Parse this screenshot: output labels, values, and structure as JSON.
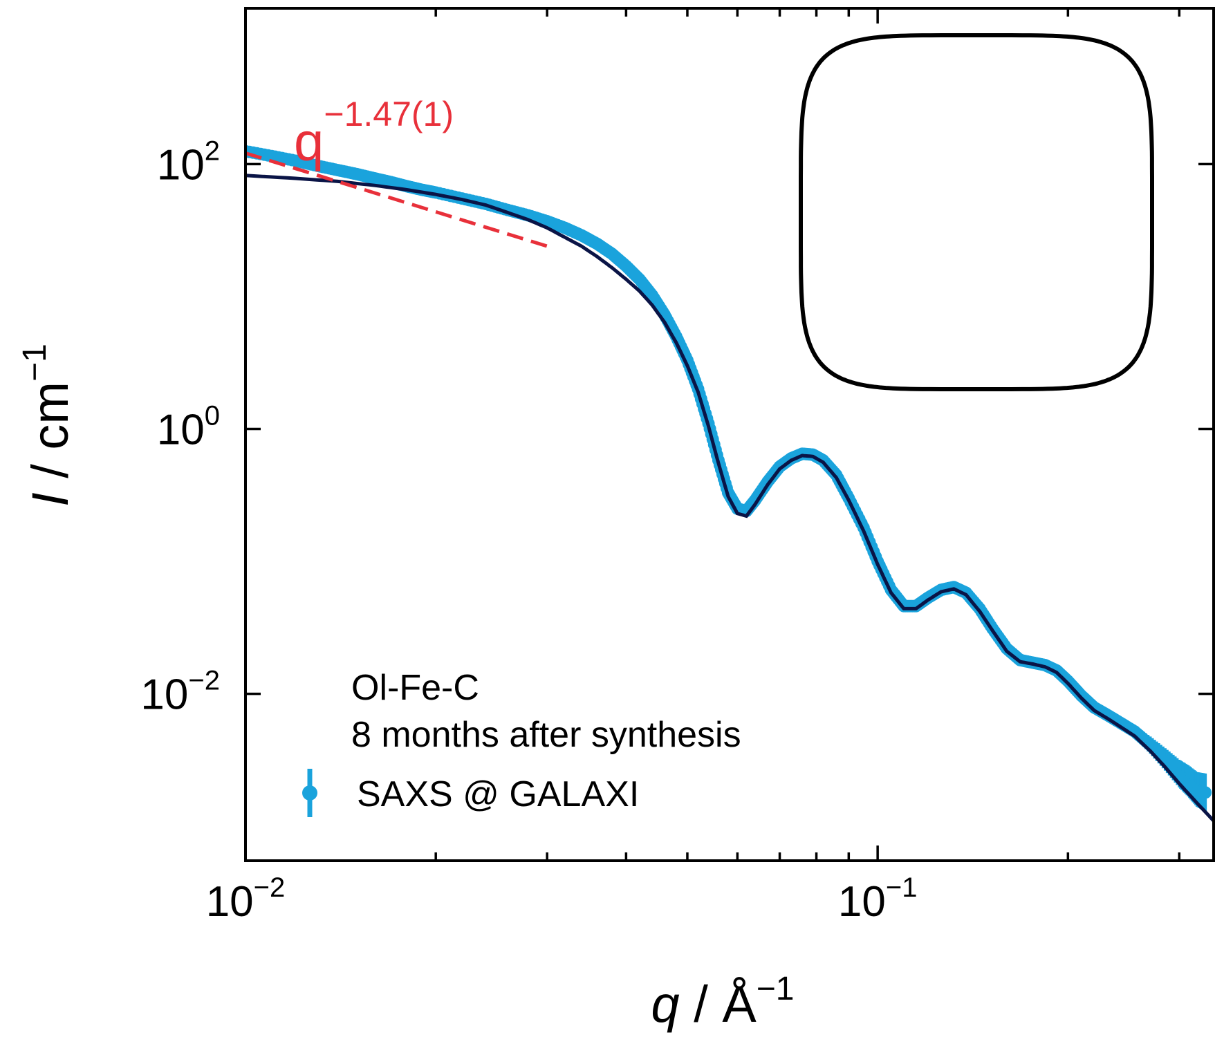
{
  "chart_data": {
    "type": "scatter",
    "xlabel": "q / Å−1",
    "xlabel_parts": {
      "var": "q",
      "unit": "Å",
      "exp": "−1"
    },
    "ylabel": "I / cm−1",
    "ylabel_parts": {
      "var": "I",
      "unit": "cm",
      "exp": "−1"
    },
    "xscale": "log",
    "yscale": "log",
    "xlim": [
      0.01,
      0.34
    ],
    "ylim": [
      0.00055,
      1500
    ],
    "grid": false,
    "legend_position": "bottom-center",
    "x_ticks": [
      {
        "value": 0.01,
        "base": "10",
        "exp": "−2"
      },
      {
        "value": 0.1,
        "base": "10",
        "exp": "−1"
      }
    ],
    "y_ticks": [
      {
        "value": 0.01,
        "base": "10",
        "exp": "−2"
      },
      {
        "value": 1,
        "base": "10",
        "exp": "0"
      },
      {
        "value": 100,
        "base": "10",
        "exp": "2"
      }
    ],
    "legend": {
      "line1": "Ol-Fe-C",
      "line2": "8 months after synthesis",
      "series_label": "SAXS @ GALAXI"
    },
    "annotation": {
      "base": "q",
      "exp": "−1.47(1)",
      "color": "#e8303a"
    },
    "series": [
      {
        "name": "SAXS @ GALAXI",
        "kind": "data",
        "color": "#1aa3dc",
        "points": [
          [
            0.01,
            125
          ],
          [
            0.011,
            115
          ],
          [
            0.012,
            106
          ],
          [
            0.013,
            97
          ],
          [
            0.014,
            90
          ],
          [
            0.015,
            84
          ],
          [
            0.016,
            78
          ],
          [
            0.017,
            73
          ],
          [
            0.018,
            68
          ],
          [
            0.019,
            64
          ],
          [
            0.02,
            61
          ],
          [
            0.022,
            55
          ],
          [
            0.024,
            50
          ],
          [
            0.026,
            45
          ],
          [
            0.028,
            41
          ],
          [
            0.03,
            37
          ],
          [
            0.032,
            33
          ],
          [
            0.034,
            29
          ],
          [
            0.036,
            25
          ],
          [
            0.038,
            21
          ],
          [
            0.04,
            17
          ],
          [
            0.042,
            13.5
          ],
          [
            0.044,
            10.2
          ],
          [
            0.046,
            7.3
          ],
          [
            0.048,
            5.0
          ],
          [
            0.05,
            3.3
          ],
          [
            0.052,
            2.0
          ],
          [
            0.054,
            1.1
          ],
          [
            0.056,
            0.58
          ],
          [
            0.058,
            0.33
          ],
          [
            0.06,
            0.25
          ],
          [
            0.062,
            0.24
          ],
          [
            0.064,
            0.29
          ],
          [
            0.067,
            0.4
          ],
          [
            0.07,
            0.52
          ],
          [
            0.073,
            0.6
          ],
          [
            0.076,
            0.65
          ],
          [
            0.079,
            0.64
          ],
          [
            0.082,
            0.58
          ],
          [
            0.086,
            0.45
          ],
          [
            0.09,
            0.3
          ],
          [
            0.095,
            0.18
          ],
          [
            0.1,
            0.1
          ],
          [
            0.105,
            0.061
          ],
          [
            0.11,
            0.046
          ],
          [
            0.115,
            0.046
          ],
          [
            0.12,
            0.053
          ],
          [
            0.126,
            0.061
          ],
          [
            0.132,
            0.064
          ],
          [
            0.138,
            0.058
          ],
          [
            0.145,
            0.044
          ],
          [
            0.152,
            0.031
          ],
          [
            0.16,
            0.022
          ],
          [
            0.168,
            0.018
          ],
          [
            0.176,
            0.0172
          ],
          [
            0.184,
            0.0165
          ],
          [
            0.192,
            0.015
          ],
          [
            0.2,
            0.0125
          ],
          [
            0.21,
            0.0097
          ],
          [
            0.22,
            0.0079
          ],
          [
            0.23,
            0.007
          ],
          [
            0.24,
            0.0062
          ],
          [
            0.255,
            0.0052
          ],
          [
            0.27,
            0.0041
          ],
          [
            0.285,
            0.0032
          ],
          [
            0.3,
            0.0025
          ],
          [
            0.31,
            0.0022
          ],
          [
            0.32,
            0.0019
          ],
          [
            0.33,
            0.0018
          ]
        ]
      },
      {
        "name": "",
        "kind": "fit",
        "color": "#0a1446",
        "points": [
          [
            0.01,
            82
          ],
          [
            0.012,
            78
          ],
          [
            0.014,
            74
          ],
          [
            0.016,
            69
          ],
          [
            0.018,
            64
          ],
          [
            0.02,
            59
          ],
          [
            0.022,
            54
          ],
          [
            0.024,
            49
          ],
          [
            0.026,
            43
          ],
          [
            0.028,
            38
          ],
          [
            0.03,
            33
          ],
          [
            0.032,
            28
          ],
          [
            0.034,
            24
          ],
          [
            0.036,
            20
          ],
          [
            0.038,
            16.5
          ],
          [
            0.04,
            13.5
          ],
          [
            0.042,
            11
          ],
          [
            0.044,
            8.6
          ],
          [
            0.046,
            6.4
          ],
          [
            0.048,
            4.5
          ],
          [
            0.05,
            3.0
          ],
          [
            0.052,
            1.9
          ],
          [
            0.054,
            1.05
          ],
          [
            0.056,
            0.55
          ],
          [
            0.058,
            0.31
          ],
          [
            0.06,
            0.23
          ],
          [
            0.062,
            0.22
          ],
          [
            0.064,
            0.27
          ],
          [
            0.067,
            0.38
          ],
          [
            0.07,
            0.5
          ],
          [
            0.073,
            0.58
          ],
          [
            0.076,
            0.63
          ],
          [
            0.079,
            0.62
          ],
          [
            0.082,
            0.56
          ],
          [
            0.086,
            0.43
          ],
          [
            0.09,
            0.29
          ],
          [
            0.095,
            0.17
          ],
          [
            0.1,
            0.095
          ],
          [
            0.105,
            0.058
          ],
          [
            0.11,
            0.044
          ],
          [
            0.115,
            0.044
          ],
          [
            0.12,
            0.051
          ],
          [
            0.126,
            0.059
          ],
          [
            0.132,
            0.062
          ],
          [
            0.138,
            0.056
          ],
          [
            0.145,
            0.042
          ],
          [
            0.152,
            0.03
          ],
          [
            0.16,
            0.021
          ],
          [
            0.168,
            0.0175
          ],
          [
            0.176,
            0.0168
          ],
          [
            0.184,
            0.016
          ],
          [
            0.192,
            0.0145
          ],
          [
            0.2,
            0.012
          ],
          [
            0.21,
            0.0093
          ],
          [
            0.22,
            0.0075
          ],
          [
            0.23,
            0.0066
          ],
          [
            0.24,
            0.0058
          ],
          [
            0.255,
            0.0048
          ],
          [
            0.27,
            0.0037
          ],
          [
            0.285,
            0.0028
          ],
          [
            0.3,
            0.0021
          ],
          [
            0.32,
            0.0015
          ],
          [
            0.34,
            0.0011
          ]
        ]
      },
      {
        "name": "",
        "kind": "power-law",
        "color": "#e8303a",
        "exponent": -1.47,
        "points": [
          [
            0.01,
            121
          ],
          [
            0.03,
            24
          ]
        ]
      }
    ]
  },
  "inset": {
    "shape": "superellipse-outline",
    "color": "#000000"
  }
}
